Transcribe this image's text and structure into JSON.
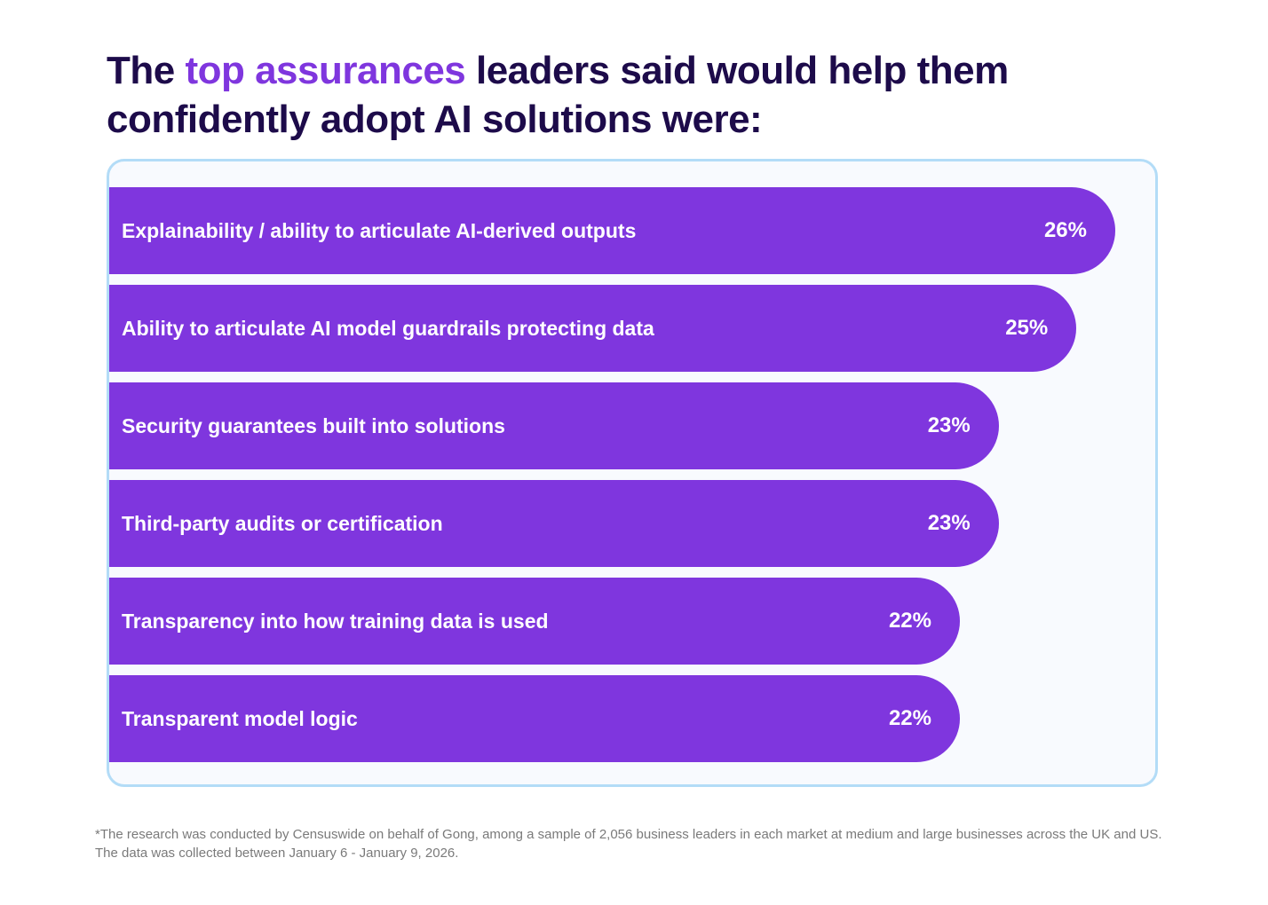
{
  "title": {
    "prefix": "The ",
    "highlight": "top assurances",
    "suffix": " leaders said would help them confidently adopt AI solutions were:"
  },
  "chart_data": {
    "type": "bar",
    "orientation": "horizontal",
    "categories": [
      "Explainability / ability to articulate AI-derived outputs",
      "Ability to articulate AI model guardrails protecting data",
      "Security guarantees built into solutions",
      "Third-party audits or certification",
      "Transparency into how training data is used",
      "Transparent model logic"
    ],
    "values": [
      26,
      25,
      23,
      23,
      22,
      22
    ],
    "value_labels": [
      "26%",
      "25%",
      "23%",
      "23%",
      "22%",
      "22%"
    ],
    "unit": "%",
    "bar_color": "#7f36de"
  },
  "footnote": "*The research was conducted by Censuswide on behalf of Gong, among a sample of 2,056 business leaders in each market at medium and large businesses across the UK and US. The data was collected between January 6 - January 9, 2026."
}
